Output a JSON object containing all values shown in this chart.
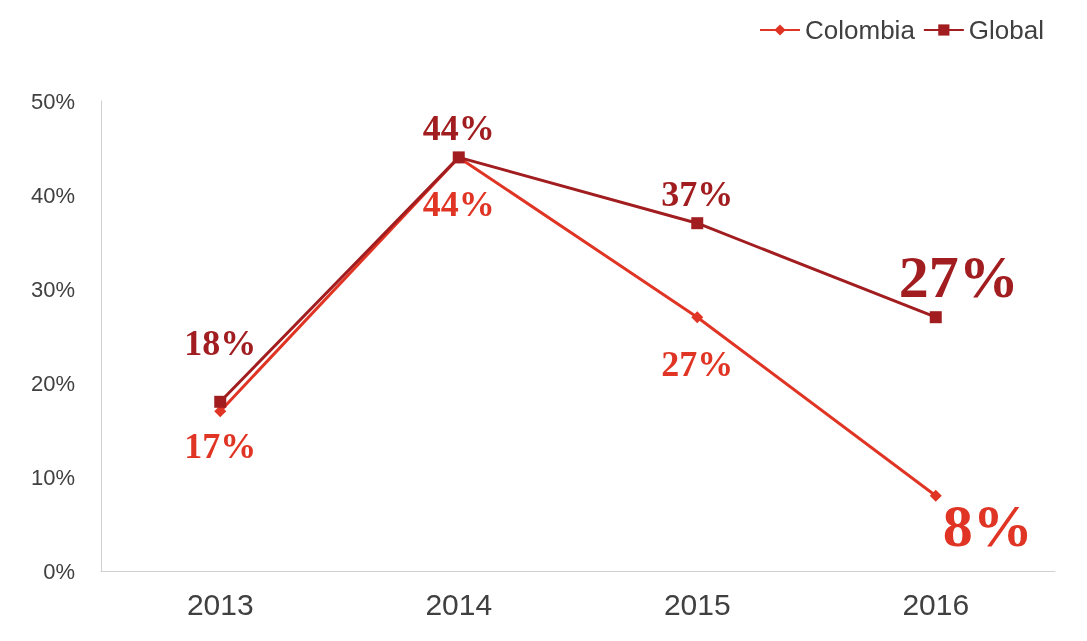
{
  "chart_data": {
    "type": "line",
    "categories": [
      "2013",
      "2014",
      "2015",
      "2016"
    ],
    "series": [
      {
        "name": "Colombia",
        "color": "#e03524",
        "marker": "diamond",
        "values": [
          17,
          44,
          27,
          8
        ],
        "value_labels": [
          "17%",
          "44%",
          "27%",
          "8%"
        ]
      },
      {
        "name": "Global",
        "color": "#a11d1f",
        "marker": "square",
        "values": [
          18,
          44,
          37,
          27
        ],
        "value_labels": [
          "18%",
          "44%",
          "37%",
          "27%"
        ]
      }
    ],
    "ylim": [
      0,
      50
    ],
    "yticks": [
      {
        "value": 0,
        "label": "0%"
      },
      {
        "value": 10,
        "label": "10%"
      },
      {
        "value": 20,
        "label": "20%"
      },
      {
        "value": 30,
        "label": "30%"
      },
      {
        "value": 40,
        "label": "40%"
      },
      {
        "value": 50,
        "label": "50%"
      }
    ],
    "grid": false,
    "legend": "top right",
    "line_style": "solid"
  }
}
